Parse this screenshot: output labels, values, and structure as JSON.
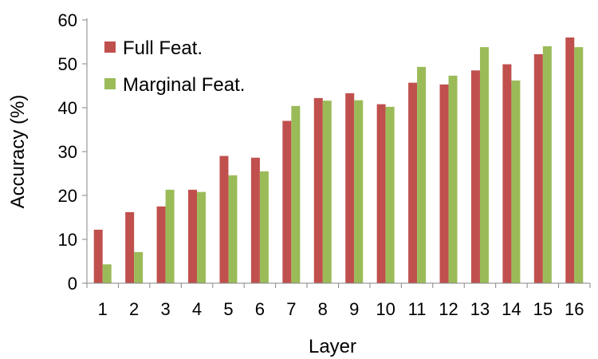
{
  "chart_data": {
    "type": "bar",
    "title": "",
    "xlabel": "Layer",
    "ylabel": "Accuracy (%)",
    "categories": [
      "1",
      "2",
      "3",
      "4",
      "5",
      "6",
      "7",
      "8",
      "9",
      "10",
      "11",
      "12",
      "13",
      "14",
      "15",
      "16"
    ],
    "ylim": [
      0,
      60
    ],
    "yticks": [
      0,
      10,
      20,
      30,
      40,
      50,
      60
    ],
    "grid": false,
    "legend_position": "top-left",
    "series": [
      {
        "name": "Full Feat.",
        "color": "#c0504d",
        "values": [
          12.2,
          16.2,
          17.5,
          21.3,
          29.0,
          28.6,
          37.0,
          42.2,
          43.3,
          40.8,
          45.7,
          45.3,
          48.5,
          49.9,
          52.2,
          56.0
        ]
      },
      {
        "name": "Marginal Feat.",
        "color": "#9bbb59",
        "values": [
          4.3,
          7.1,
          21.3,
          20.8,
          24.6,
          25.5,
          40.4,
          41.6,
          41.7,
          40.2,
          49.3,
          47.3,
          53.8,
          46.2,
          54.0,
          53.8
        ]
      }
    ]
  }
}
